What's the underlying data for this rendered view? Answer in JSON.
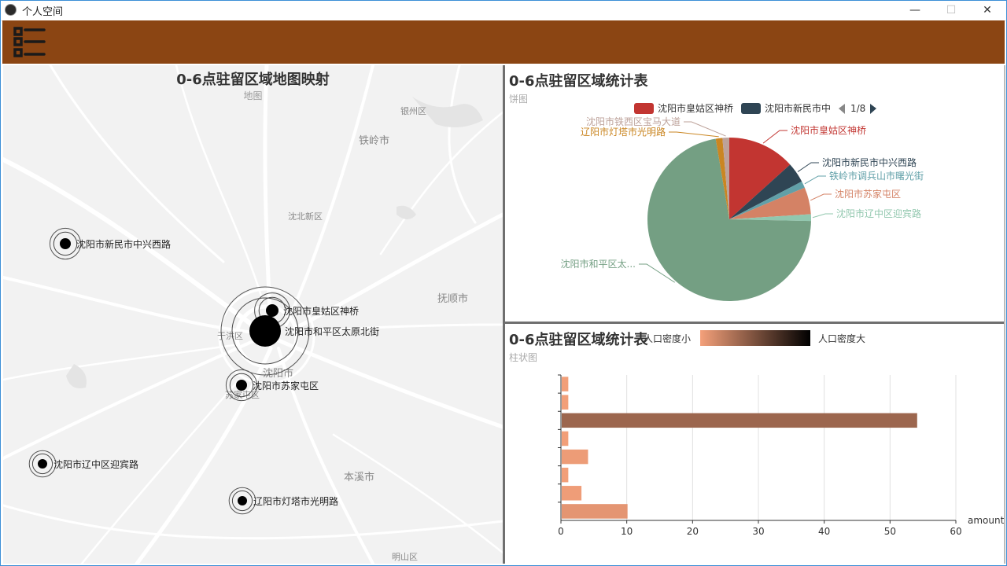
{
  "window": {
    "title": "个人空间",
    "minimize": "—",
    "maximize": "☐",
    "close": "✕"
  },
  "map": {
    "title": "0-6点驻留区域地图映射",
    "subtitle": "地图",
    "places": [
      {
        "name": "银州区"
      },
      {
        "name": "铁岭市"
      },
      {
        "name": "沈北新区"
      },
      {
        "name": "抚顺市"
      },
      {
        "name": "于洪区"
      },
      {
        "name": "沈阳市"
      },
      {
        "name": "苏家屯区"
      },
      {
        "name": "本溪市"
      },
      {
        "name": "明山区"
      }
    ],
    "points": [
      {
        "name": "沈阳市新民市中兴西路"
      },
      {
        "name": "沈阳市皇姑区神桥"
      },
      {
        "name": "沈阳市和平区太原北街"
      },
      {
        "name": "沈阳市苏家屯区"
      },
      {
        "name": "沈阳市辽中区迎宾路"
      },
      {
        "name": "辽阳市灯塔市光明路"
      }
    ]
  },
  "pie": {
    "title": "0-6点驻留区域统计表",
    "subtitle": "饼图",
    "legend": {
      "items": [
        {
          "name": "沈阳市皇姑区神桥",
          "color": "#c23531"
        },
        {
          "name": "沈阳市新民市中",
          "color": "#2f4554"
        }
      ],
      "page": "1/8"
    },
    "labels": [
      {
        "text": "沈阳市皇姑区神桥",
        "color": "#c23531"
      },
      {
        "text": "沈阳市新民市中兴西路",
        "color": "#2f4554"
      },
      {
        "text": "铁岭市调兵山市曙光街",
        "color": "#61a0a8"
      },
      {
        "text": "沈阳市苏家屯区",
        "color": "#d48265"
      },
      {
        "text": "沈阳市辽中区迎宾路",
        "color": "#91c7ae"
      },
      {
        "text": "沈阳市和平区太...",
        "color": "#749f83"
      },
      {
        "text": "辽阳市灯塔市光明路",
        "color": "#ca8622"
      },
      {
        "text": "沈阳市铁西区宝马大道",
        "color": "#bda29a"
      }
    ]
  },
  "bar": {
    "title": "0-6点驻留区域统计表",
    "subtitle": "柱状图",
    "visualmap": {
      "low_label": "人口密度小",
      "high_label": "人口密度大",
      "low_color": "#f4a07a",
      "high_color": "#000000"
    },
    "xlabel": "amount"
  },
  "chart_data": [
    {
      "type": "pie",
      "title": "0-6点驻留区域统计表",
      "slices": [
        {
          "name": "沈阳市皇姑区神桥",
          "value": 10
        },
        {
          "name": "沈阳市新民市中兴西路",
          "value": 3
        },
        {
          "name": "铁岭市调兵山市曙光街",
          "value": 1
        },
        {
          "name": "沈阳市苏家屯区",
          "value": 4
        },
        {
          "name": "沈阳市辽中区迎宾路",
          "value": 1
        },
        {
          "name": "沈阳市和平区太原北街",
          "value": 54
        },
        {
          "name": "辽阳市灯塔市光明路",
          "value": 1
        },
        {
          "name": "沈阳市铁西区宝马大道",
          "value": 1
        }
      ]
    },
    {
      "type": "bar",
      "orientation": "horizontal",
      "title": "0-6点驻留区域统计表",
      "xlabel": "amount",
      "xlim": [
        0,
        60
      ],
      "xticks": [
        "0",
        "10",
        "20",
        "30",
        "40",
        "50",
        "60"
      ],
      "values": [
        10,
        3,
        1,
        4,
        1,
        54,
        1,
        1
      ],
      "grid": true
    }
  ]
}
